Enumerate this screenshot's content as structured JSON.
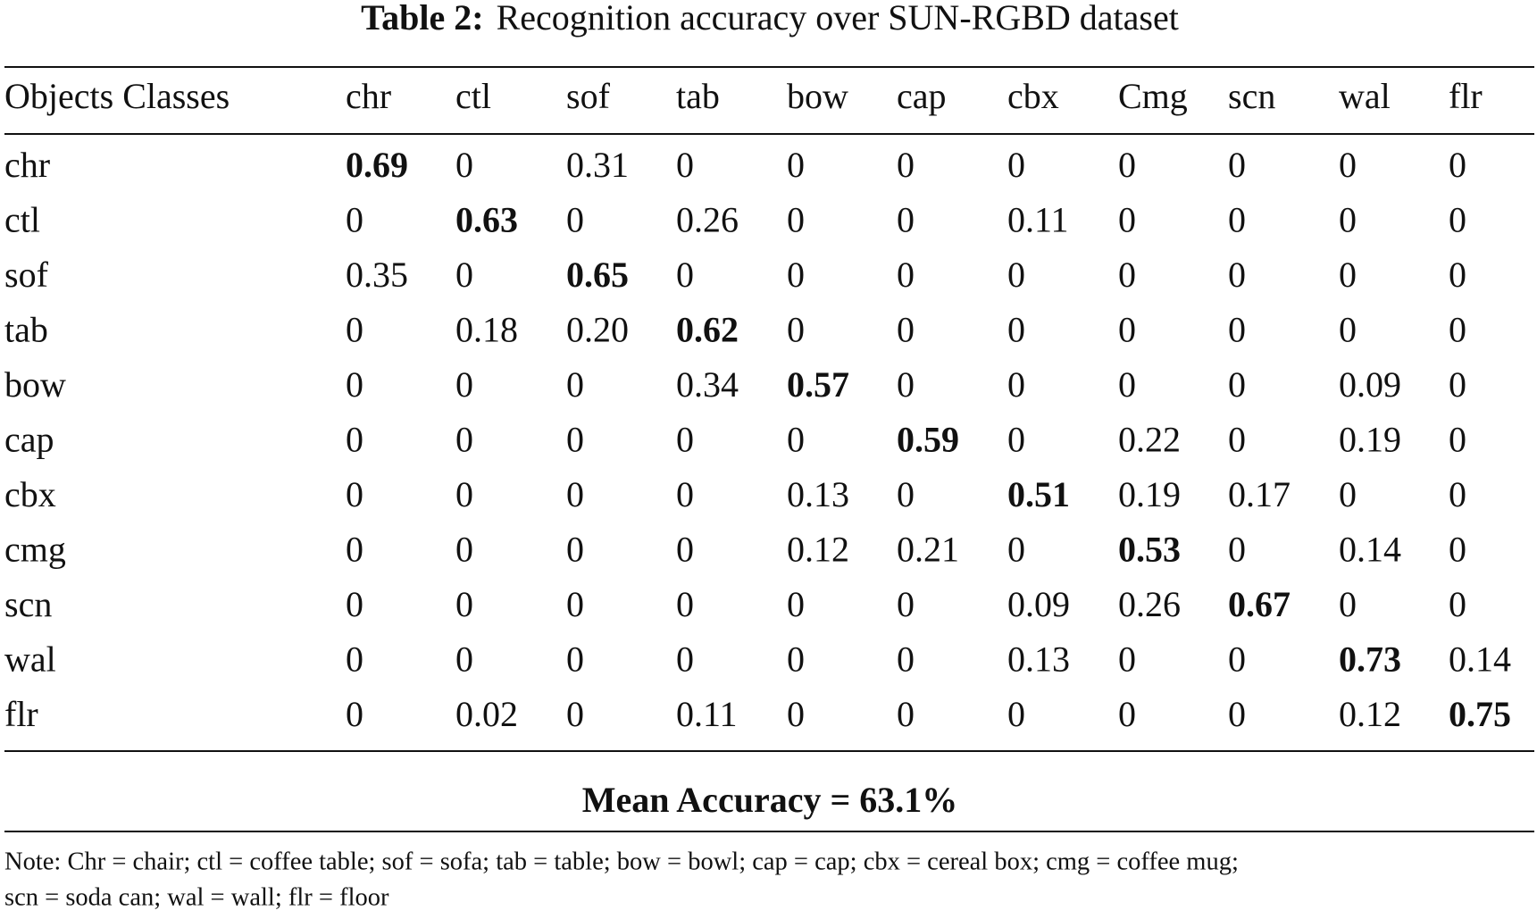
{
  "table": {
    "label": "Table 2:",
    "caption": "Recognition accuracy over SUN-RGBD dataset",
    "header": [
      "Objects Classes",
      "chr",
      "ctl",
      "sof",
      "tab",
      "bow",
      "cap",
      "cbx",
      "Cmg",
      "scn",
      "wal",
      "flr"
    ],
    "rows": [
      [
        "chr",
        "0.69",
        "0",
        "0.31",
        "0",
        "0",
        "0",
        "0",
        "0",
        "0",
        "0",
        "0"
      ],
      [
        "ctl",
        "0",
        "0.63",
        "0",
        "0.26",
        "0",
        "0",
        "0.11",
        "0",
        "0",
        "0",
        "0"
      ],
      [
        "sof",
        "0.35",
        "0",
        "0.65",
        "0",
        "0",
        "0",
        "0",
        "0",
        "0",
        "0",
        "0"
      ],
      [
        "tab",
        "0",
        "0.18",
        "0.20",
        "0.62",
        "0",
        "0",
        "0",
        "0",
        "0",
        "0",
        "0"
      ],
      [
        "bow",
        "0",
        "0",
        "0",
        "0.34",
        "0.57",
        "0",
        "0",
        "0",
        "0",
        "0.09",
        "0"
      ],
      [
        "cap",
        "0",
        "0",
        "0",
        "0",
        "0",
        "0.59",
        "0",
        "0.22",
        "0",
        "0.19",
        "0"
      ],
      [
        "cbx",
        "0",
        "0",
        "0",
        "0",
        "0.13",
        "0",
        "0.51",
        "0.19",
        "0.17",
        "0",
        "0"
      ],
      [
        "cmg",
        "0",
        "0",
        "0",
        "0",
        "0.12",
        "0.21",
        "0",
        "0.53",
        "0",
        "0.14",
        "0"
      ],
      [
        "scn",
        "0",
        "0",
        "0",
        "0",
        "0",
        "0",
        "0.09",
        "0.26",
        "0.67",
        "0",
        "0"
      ],
      [
        "wal",
        "0",
        "0",
        "0",
        "0",
        "0",
        "0",
        "0.13",
        "0",
        "0",
        "0.73",
        "0.14"
      ],
      [
        "flr",
        "0",
        "0.02",
        "0",
        "0.11",
        "0",
        "0",
        "0",
        "0",
        "0",
        "0.12",
        "0.75"
      ]
    ],
    "summary": "Mean Accuracy = 63.1%",
    "note": [
      "Note: Chr = chair; ctl = coffee table; sof = sofa; tab = table; bow = bowl; cap = cap; cbx = cereal box; cmg = coffee mug;",
      "scn = soda can; wal = wall; flr = floor"
    ]
  }
}
